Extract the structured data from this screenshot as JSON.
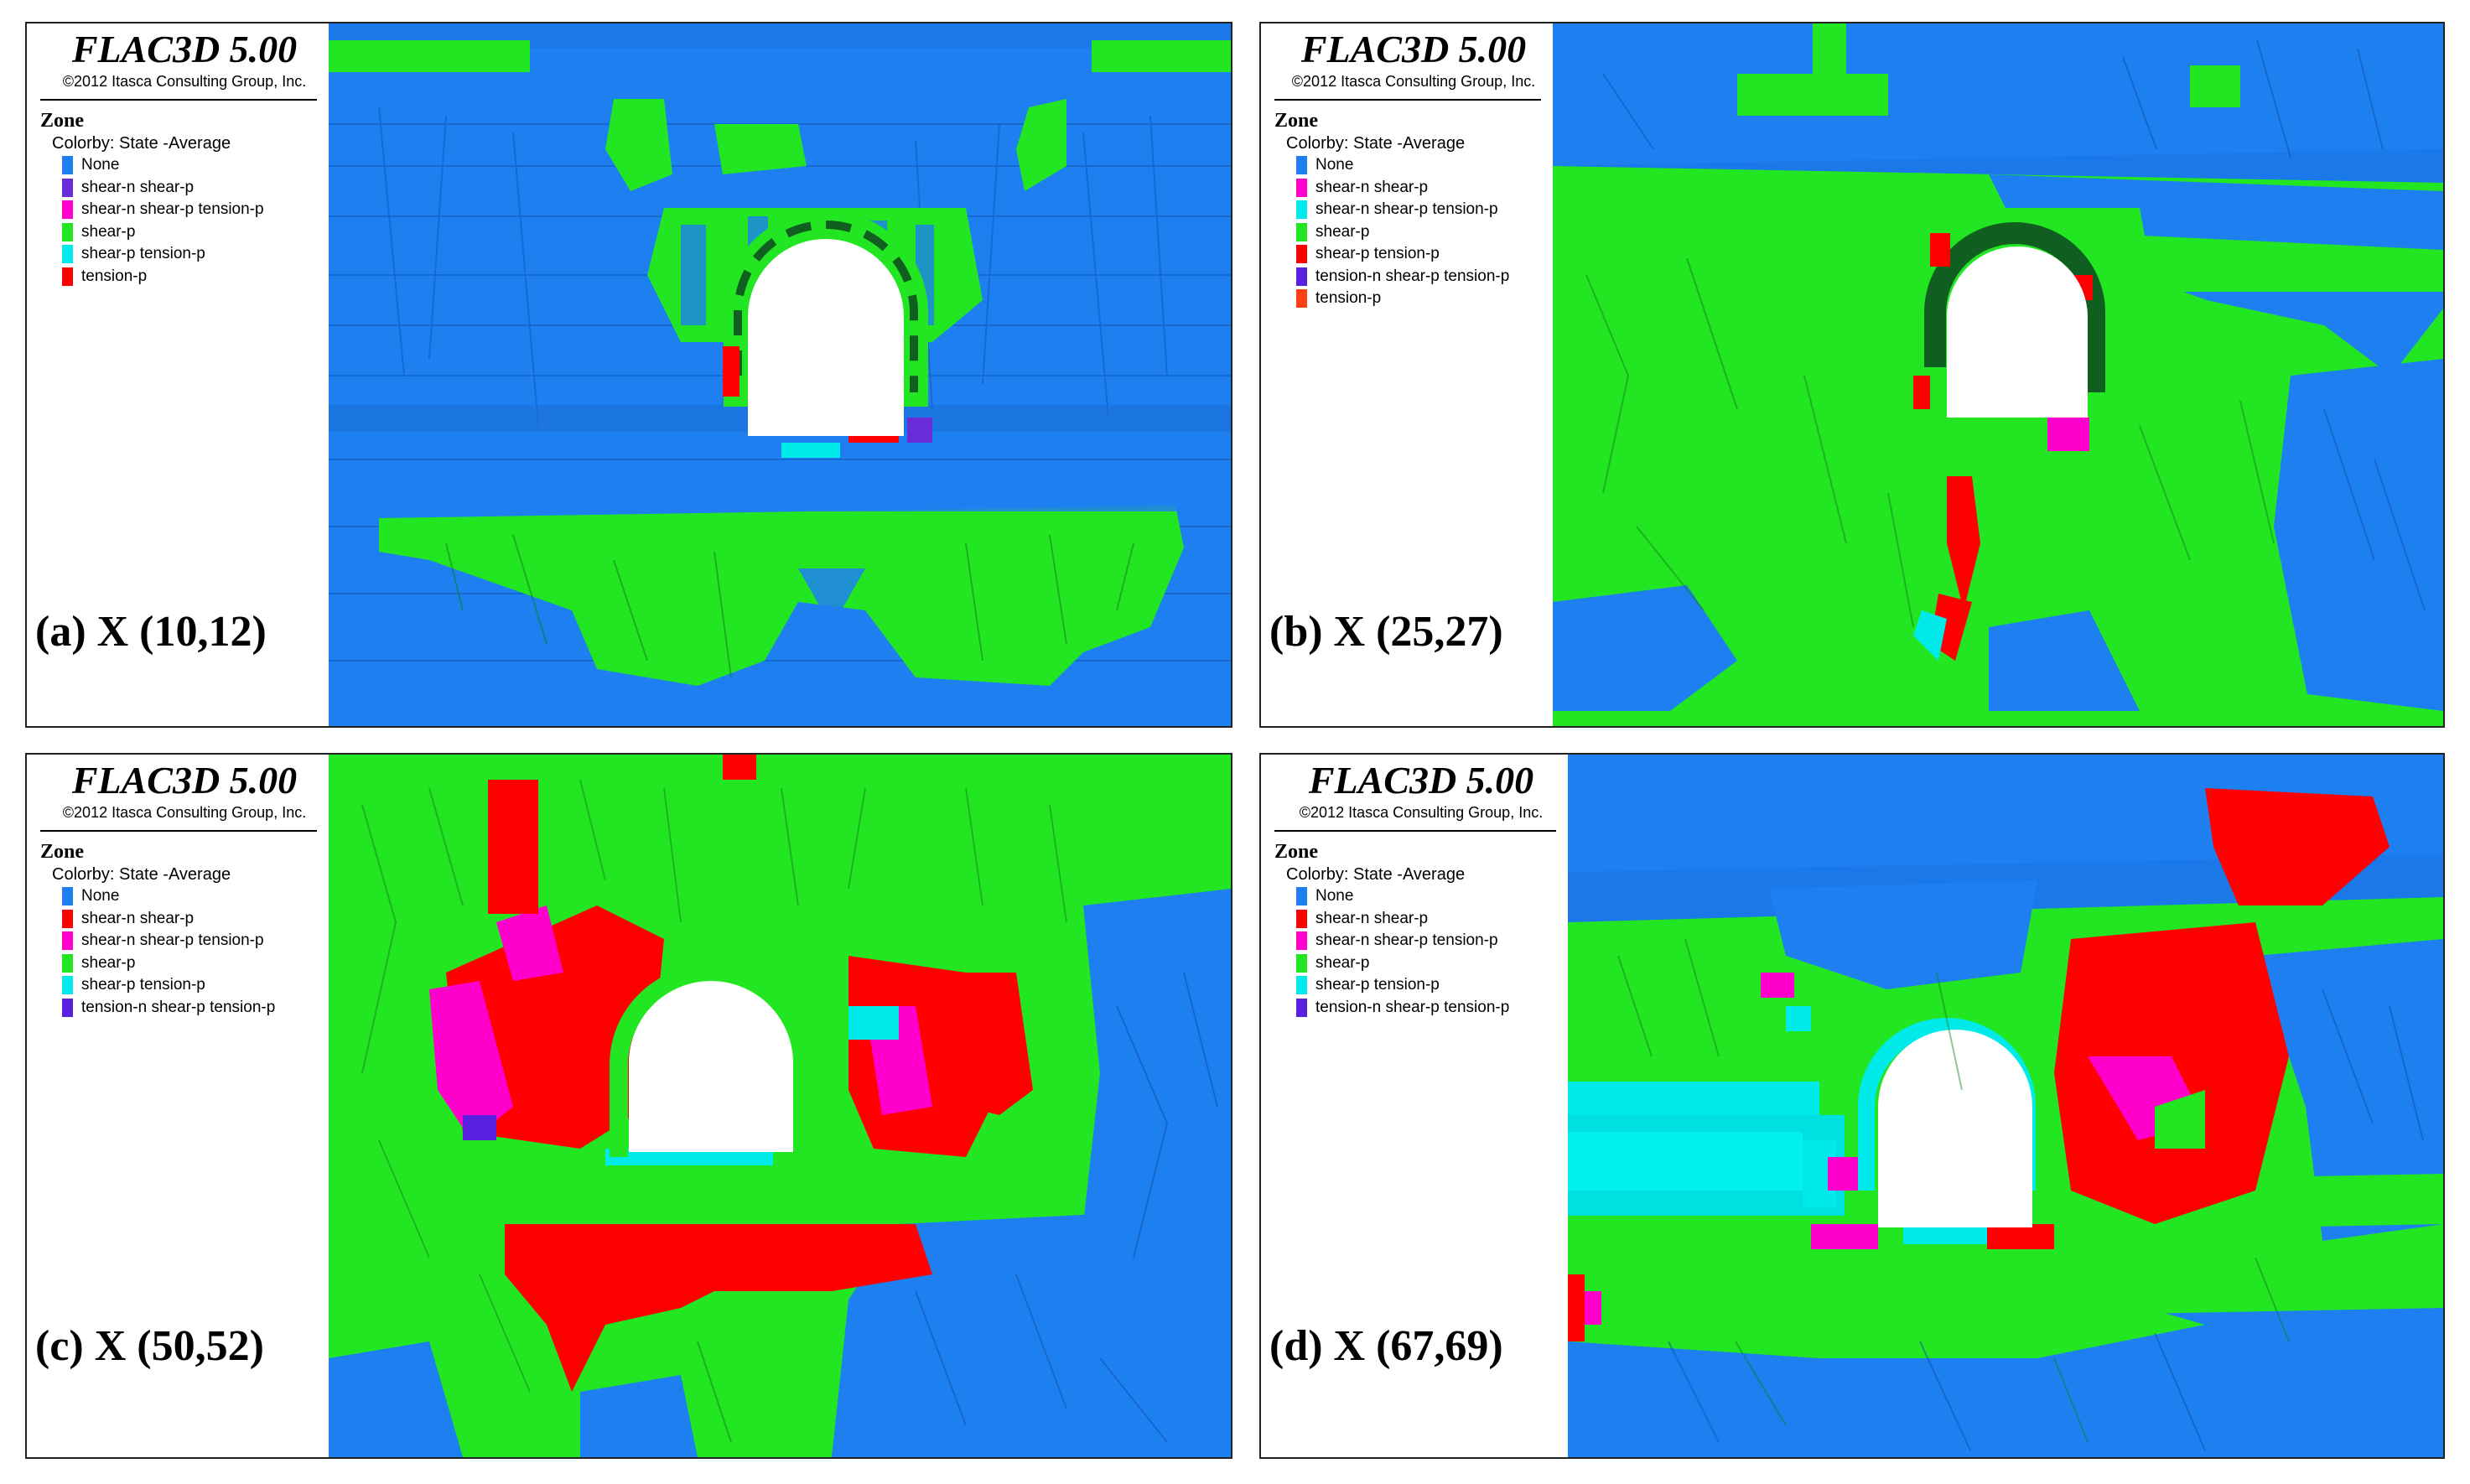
{
  "brand": "FLAC3D 5.00",
  "copyright": "©2012 Itasca Consulting Group, Inc.",
  "zone_label": "Zone",
  "colorby_label": "Colorby: State  -Average",
  "colors": {
    "None": "#1e7ff0",
    "shear-n shear-p": "#6a2bd8",
    "shear-n shear-p tension-p": "#ff00cc",
    "shear-p": "#22e622",
    "shear-p tension-p": "#00eaea",
    "tension-p": "#ff0000",
    "tension-n shear-p tension-p": "#5a20e0",
    "shear-n shear-p (red)": "#ff0000",
    "tension-p (orange)": "#ff4010"
  },
  "panels": [
    {
      "caption": "(a) X (10,12)",
      "legend": [
        {
          "label": "None",
          "color": "#1e7ff0"
        },
        {
          "label": "shear-n shear-p",
          "color": "#6a2bd8"
        },
        {
          "label": "shear-n shear-p tension-p",
          "color": "#ff00cc"
        },
        {
          "label": "shear-p",
          "color": "#22e622"
        },
        {
          "label": "shear-p tension-p",
          "color": "#00eaea"
        },
        {
          "label": "tension-p",
          "color": "#ff0000"
        }
      ]
    },
    {
      "caption": "(b) X (25,27)",
      "legend": [
        {
          "label": "None",
          "color": "#1e7ff0"
        },
        {
          "label": "shear-n shear-p",
          "color": "#ff00cc"
        },
        {
          "label": "shear-n shear-p tension-p",
          "color": "#00eaea"
        },
        {
          "label": "shear-p",
          "color": "#22e622"
        },
        {
          "label": "shear-p tension-p",
          "color": "#ff0000"
        },
        {
          "label": "tension-n shear-p tension-p",
          "color": "#5a20e0"
        },
        {
          "label": "tension-p",
          "color": "#ff4010"
        }
      ]
    },
    {
      "caption": "(c) X (50,52)",
      "legend": [
        {
          "label": "None",
          "color": "#1e7ff0"
        },
        {
          "label": "shear-n shear-p",
          "color": "#ff0000"
        },
        {
          "label": "shear-n shear-p tension-p",
          "color": "#ff00cc"
        },
        {
          "label": "shear-p",
          "color": "#22e622"
        },
        {
          "label": "shear-p tension-p",
          "color": "#00eaea"
        },
        {
          "label": "tension-n shear-p tension-p",
          "color": "#5a20e0"
        }
      ]
    },
    {
      "caption": "(d) X (67,69)",
      "legend": [
        {
          "label": "None",
          "color": "#1e7ff0"
        },
        {
          "label": "shear-n shear-p",
          "color": "#ff0000"
        },
        {
          "label": "shear-n shear-p tension-p",
          "color": "#ff00cc"
        },
        {
          "label": "shear-p",
          "color": "#22e622"
        },
        {
          "label": "shear-p tension-p",
          "color": "#00eaea"
        },
        {
          "label": "tension-n shear-p tension-p",
          "color": "#5a20e0"
        }
      ]
    }
  ]
}
